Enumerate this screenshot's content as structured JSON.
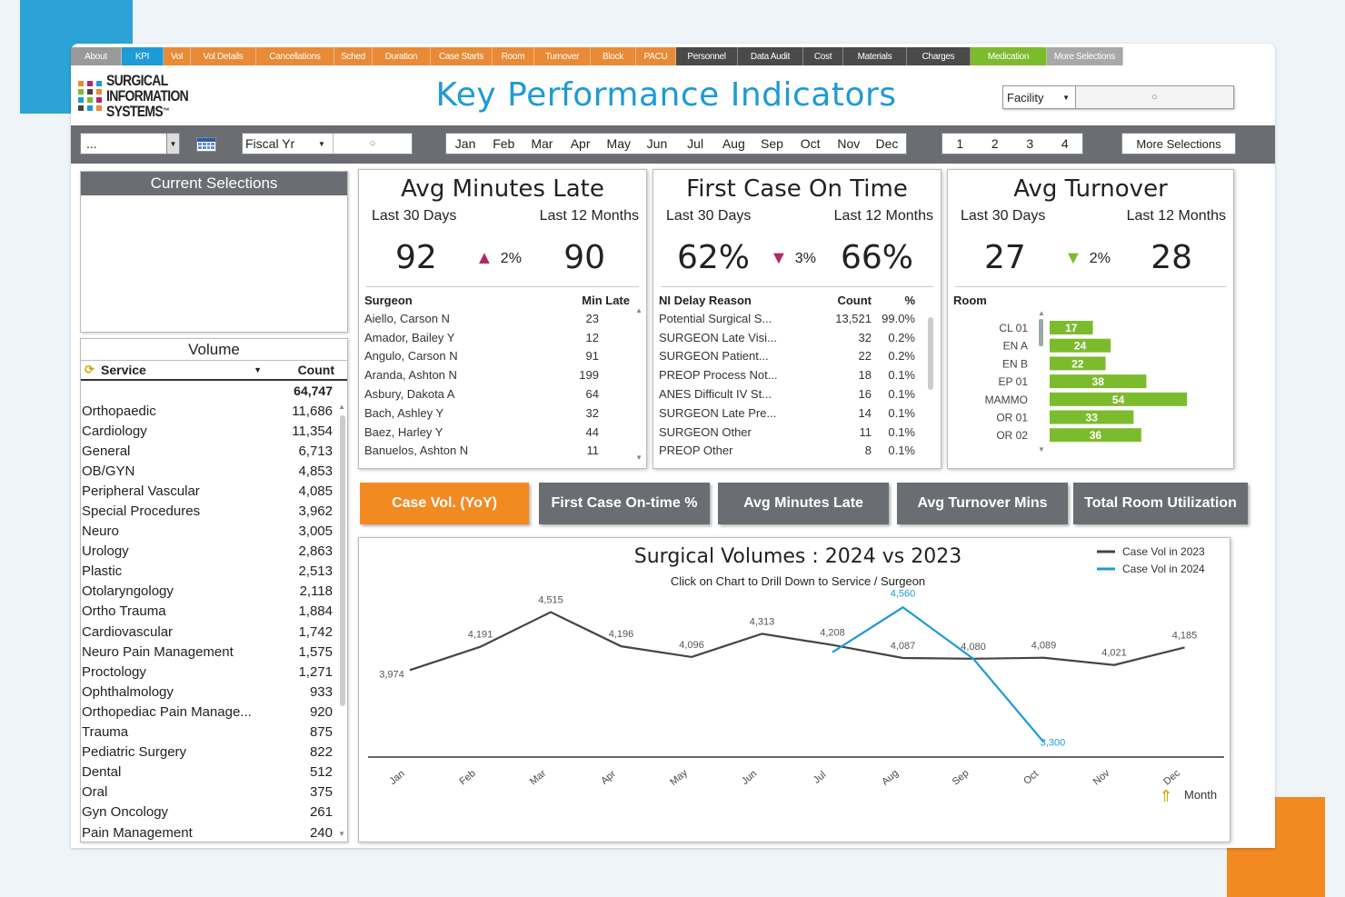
{
  "tabs": [
    {
      "label": "About",
      "style": "gray",
      "w": 0
    },
    {
      "label": "KPI",
      "style": "blue"
    },
    {
      "label": "Vol",
      "style": "orange"
    },
    {
      "label": "Vol Details",
      "style": "orange"
    },
    {
      "label": "Cancellations",
      "style": "orange"
    },
    {
      "label": "Sched",
      "style": "orange"
    },
    {
      "label": "Duration",
      "style": "orange"
    },
    {
      "label": "Case Starts",
      "style": "orange"
    },
    {
      "label": "Room",
      "style": "orange"
    },
    {
      "label": "Turnover",
      "style": "orange"
    },
    {
      "label": "Block",
      "style": "orange"
    },
    {
      "label": "PACU",
      "style": "orange"
    },
    {
      "label": "Personnel",
      "style": "dark"
    },
    {
      "label": "Data Audit",
      "style": "dark"
    },
    {
      "label": "Cost",
      "style": "dark"
    },
    {
      "label": "Materials",
      "style": "dark"
    },
    {
      "label": "Charges",
      "style": "dark"
    },
    {
      "label": "Medication",
      "style": "green"
    },
    {
      "label": "More Selections",
      "style": "lgray"
    }
  ],
  "logo": {
    "line1": "SURGICAL",
    "line2": "INFORMATION",
    "line3": "SYSTEMS",
    "tm": "™"
  },
  "header": {
    "title": "Key Performance Indicators",
    "facility_label": "Facility"
  },
  "filters": {
    "period_value": "...",
    "fiscal_label": "Fiscal Yr",
    "months": [
      "Jan",
      "Feb",
      "Mar",
      "Apr",
      "May",
      "Jun",
      "Jul",
      "Aug",
      "Sep",
      "Oct",
      "Nov",
      "Dec"
    ],
    "quarters": [
      "1",
      "2",
      "3",
      "4"
    ],
    "more_selections": "More Selections"
  },
  "current_selections": {
    "title": "Current Selections"
  },
  "volume": {
    "title": "Volume",
    "col_service": "Service",
    "col_count": "Count",
    "total": "64,747",
    "rows": [
      {
        "name": "Orthopaedic",
        "count": "11,686"
      },
      {
        "name": "Cardiology",
        "count": "11,354"
      },
      {
        "name": "General",
        "count": "6,713"
      },
      {
        "name": "OB/GYN",
        "count": "4,853"
      },
      {
        "name": "Peripheral Vascular",
        "count": "4,085"
      },
      {
        "name": "Special Procedures",
        "count": "3,962"
      },
      {
        "name": "Neuro",
        "count": "3,005"
      },
      {
        "name": "Urology",
        "count": "2,863"
      },
      {
        "name": "Plastic",
        "count": "2,513"
      },
      {
        "name": "Otolaryngology",
        "count": "2,118"
      },
      {
        "name": "Ortho Trauma",
        "count": "1,884"
      },
      {
        "name": "Cardiovascular",
        "count": "1,742"
      },
      {
        "name": "Neuro Pain Management",
        "count": "1,575"
      },
      {
        "name": "Proctology",
        "count": "1,271"
      },
      {
        "name": "Ophthalmology",
        "count": "933"
      },
      {
        "name": "Orthopediac Pain Manage...",
        "count": "920"
      },
      {
        "name": "Trauma",
        "count": "875"
      },
      {
        "name": "Pediatric Surgery",
        "count": "822"
      },
      {
        "name": "Dental",
        "count": "512"
      },
      {
        "name": "Oral",
        "count": "375"
      },
      {
        "name": "Gyn Oncology",
        "count": "261"
      },
      {
        "name": "Pain Management",
        "count": "240"
      }
    ]
  },
  "cards": {
    "late": {
      "title": "Avg Minutes Late",
      "sub_left": "Last 30 Days",
      "sub_right": "Last 12 Months",
      "v1": "92",
      "v2": "90",
      "change": "2%",
      "dir": "up",
      "color": "#b0286a",
      "col1": "Surgeon",
      "col2": "Min Late",
      "rows": [
        [
          "Aiello, Carson N",
          "23"
        ],
        [
          "Amador, Bailey Y",
          "12"
        ],
        [
          "Angulo, Carson N",
          "91"
        ],
        [
          "Aranda, Ashton N",
          "199"
        ],
        [
          "Asbury, Dakota A",
          "64"
        ],
        [
          "Bach, Ashley Y",
          "32"
        ],
        [
          "Baez, Harley Y",
          "44"
        ],
        [
          "Banuelos, Ashton N",
          "11"
        ]
      ]
    },
    "ontime": {
      "title": "First Case On Time",
      "sub_left": "Last 30 Days",
      "sub_right": "Last 12 Months",
      "v1": "62%",
      "v2": "66%",
      "change": "3%",
      "dir": "down",
      "color": "#b0286a",
      "col1": "NI Delay Reason",
      "col2": "Count",
      "col3": "%",
      "rows": [
        [
          "Potential Surgical S...",
          "13,521",
          "99.0%"
        ],
        [
          "SURGEON Late Visi...",
          "32",
          "0.2%"
        ],
        [
          "SURGEON Patient...",
          "22",
          "0.2%"
        ],
        [
          "PREOP Process Not...",
          "18",
          "0.1%"
        ],
        [
          "ANES Difficult IV St...",
          "16",
          "0.1%"
        ],
        [
          "SURGEON Late Pre...",
          "14",
          "0.1%"
        ],
        [
          "SURGEON Other",
          "11",
          "0.1%"
        ],
        [
          "PREOP Other",
          "8",
          "0.1%"
        ]
      ]
    },
    "turnover": {
      "title": "Avg Turnover",
      "sub_left": "Last 30 Days",
      "sub_right": "Last 12 Months",
      "v1": "27",
      "v2": "28",
      "change": "2%",
      "dir": "down",
      "color": "#7dbb2e",
      "col1": "Room"
    }
  },
  "room_bars": {
    "categories": [
      "CL 01",
      "EN A",
      "EN B",
      "EP 01",
      "MAMMO",
      "OR 01",
      "OR 02"
    ],
    "values": [
      17,
      24,
      22,
      38,
      54,
      33,
      36
    ],
    "color": "#7dbb2e"
  },
  "buttons": [
    {
      "label": "Case Vol. (YoY)",
      "active": true
    },
    {
      "label": "First Case On-time %",
      "active": false
    },
    {
      "label": "Avg Minutes Late",
      "active": false
    },
    {
      "label": "Avg Turnover Mins",
      "active": false
    },
    {
      "label": "Total Room Utilization",
      "active": false
    }
  ],
  "chart_data": {
    "type": "line",
    "title": "Surgical Volumes : 2024 vs 2023",
    "subtitle": "Click on Chart to Drill Down to Service / Surgeon",
    "xlabel": "Month",
    "categories": [
      "Jan",
      "Feb",
      "Mar",
      "Apr",
      "May",
      "Jun",
      "Jul",
      "Aug",
      "Sep",
      "Oct",
      "Nov",
      "Dec"
    ],
    "series": [
      {
        "name": "Case Vol in 2023",
        "color": "#444444",
        "values": [
          3974,
          4191,
          4515,
          4196,
          4096,
          4313,
          4208,
          4087,
          4080,
          4089,
          4021,
          4185
        ]
      },
      {
        "name": "Case Vol in 2024",
        "color": "#1e9ad6",
        "values": [
          null,
          null,
          null,
          null,
          null,
          null,
          4140,
          4560,
          4080,
          3300,
          null,
          null
        ]
      }
    ],
    "point_labels_2023": [
      "3,974",
      "4,191",
      "4,515",
      "4,196",
      "4,096",
      "4,313",
      "4,208",
      "4,087",
      "4,080",
      "4,089",
      "4,021",
      "4,185"
    ],
    "point_labels_2024": [
      null,
      null,
      null,
      null,
      null,
      null,
      null,
      "4,560",
      null,
      "3,300",
      null,
      null
    ],
    "legend": "top-right"
  }
}
